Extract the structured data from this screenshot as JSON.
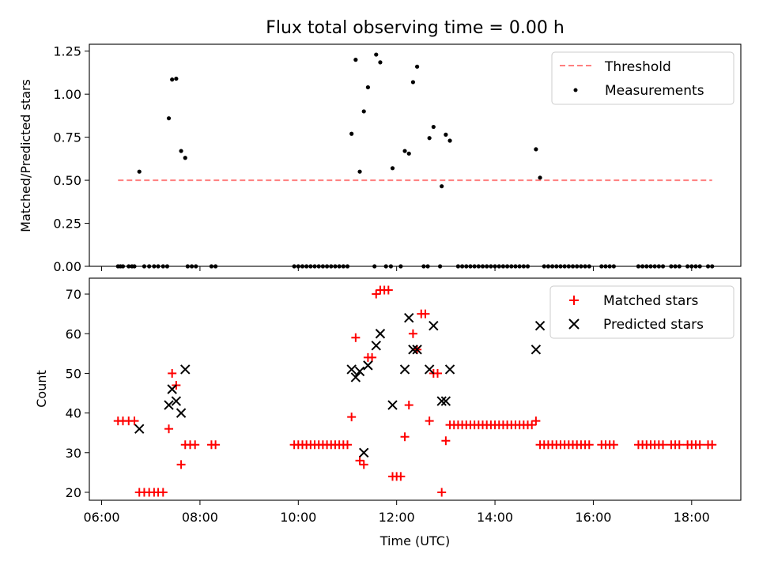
{
  "figure": {
    "title": "Flux total observing time = 0.00 h",
    "xlabel": "Time (UTC)"
  },
  "chart_data": [
    {
      "type": "scatter",
      "panel": "top",
      "ylabel": "Matched/Predicted stars",
      "xlim": [
        "05:45",
        "19:00"
      ],
      "ylim": [
        0,
        1.29
      ],
      "yticks": [
        "0.00",
        "0.25",
        "0.50",
        "0.75",
        "1.00",
        "1.25"
      ],
      "yticks_values": [
        0,
        0.25,
        0.5,
        0.75,
        1.0,
        1.25
      ],
      "legend_position": "top-right",
      "threshold": {
        "name": "Threshold",
        "value": 0.5,
        "x_range": [
          "06:20",
          "18:25"
        ],
        "color": "#ff7f7f",
        "style": "dashed"
      },
      "series": [
        {
          "name": "Measurements",
          "color": "#000000",
          "marker": "dot",
          "points": [
            [
              "06:20",
              0
            ],
            [
              "06:23",
              0
            ],
            [
              "06:26",
              0
            ],
            [
              "06:33",
              0
            ],
            [
              "06:37",
              0
            ],
            [
              "06:40",
              0
            ],
            [
              "06:46",
              0.55
            ],
            [
              "06:52",
              0
            ],
            [
              "06:58",
              0
            ],
            [
              "07:04",
              0
            ],
            [
              "07:09",
              0
            ],
            [
              "07:15",
              0
            ],
            [
              "07:20",
              0
            ],
            [
              "07:22",
              0.86
            ],
            [
              "07:26",
              1.085
            ],
            [
              "07:31",
              1.09
            ],
            [
              "07:37",
              0.67
            ],
            [
              "07:42",
              0.63
            ],
            [
              "07:45",
              0
            ],
            [
              "07:50",
              0
            ],
            [
              "07:55",
              0
            ],
            [
              "08:14",
              0
            ],
            [
              "08:19",
              0
            ],
            [
              "09:55",
              0
            ],
            [
              "10:00",
              0
            ],
            [
              "10:05",
              0
            ],
            [
              "10:10",
              0
            ],
            [
              "10:15",
              0
            ],
            [
              "10:20",
              0
            ],
            [
              "10:25",
              0
            ],
            [
              "10:30",
              0
            ],
            [
              "10:35",
              0
            ],
            [
              "10:40",
              0
            ],
            [
              "10:45",
              0
            ],
            [
              "10:50",
              0
            ],
            [
              "10:55",
              0
            ],
            [
              "11:00",
              0
            ],
            [
              "11:05",
              0.77
            ],
            [
              "11:10",
              1.2
            ],
            [
              "11:15",
              0.55
            ],
            [
              "11:20",
              0.9
            ],
            [
              "11:25",
              1.04
            ],
            [
              "11:33",
              0
            ],
            [
              "11:35",
              1.23
            ],
            [
              "11:40",
              1.185
            ],
            [
              "11:47",
              0
            ],
            [
              "11:53",
              0
            ],
            [
              "11:55",
              0.57
            ],
            [
              "12:05",
              0
            ],
            [
              "12:10",
              0.67
            ],
            [
              "12:15",
              0.655
            ],
            [
              "12:20",
              1.07
            ],
            [
              "12:25",
              1.16
            ],
            [
              "12:33",
              0
            ],
            [
              "12:38",
              0
            ],
            [
              "12:40",
              0.745
            ],
            [
              "12:45",
              0.81
            ],
            [
              "12:53",
              0
            ],
            [
              "12:55",
              0.465
            ],
            [
              "13:00",
              0.765
            ],
            [
              "13:05",
              0.73
            ],
            [
              "13:15",
              0
            ],
            [
              "13:20",
              0
            ],
            [
              "13:25",
              0
            ],
            [
              "13:30",
              0
            ],
            [
              "13:35",
              0
            ],
            [
              "13:40",
              0
            ],
            [
              "13:45",
              0
            ],
            [
              "13:50",
              0
            ],
            [
              "13:55",
              0
            ],
            [
              "14:00",
              0
            ],
            [
              "14:05",
              0
            ],
            [
              "14:10",
              0
            ],
            [
              "14:15",
              0
            ],
            [
              "14:20",
              0
            ],
            [
              "14:25",
              0
            ],
            [
              "14:30",
              0
            ],
            [
              "14:35",
              0
            ],
            [
              "14:40",
              0
            ],
            [
              "14:50",
              0.68
            ],
            [
              "14:55",
              0.515
            ],
            [
              "15:00",
              0
            ],
            [
              "15:05",
              0
            ],
            [
              "15:10",
              0
            ],
            [
              "15:15",
              0
            ],
            [
              "15:20",
              0
            ],
            [
              "15:25",
              0
            ],
            [
              "15:30",
              0
            ],
            [
              "15:35",
              0
            ],
            [
              "15:40",
              0
            ],
            [
              "15:45",
              0
            ],
            [
              "15:50",
              0
            ],
            [
              "15:55",
              0
            ],
            [
              "16:10",
              0
            ],
            [
              "16:15",
              0
            ],
            [
              "16:20",
              0
            ],
            [
              "16:25",
              0
            ],
            [
              "16:55",
              0
            ],
            [
              "17:00",
              0
            ],
            [
              "17:05",
              0
            ],
            [
              "17:10",
              0
            ],
            [
              "17:15",
              0
            ],
            [
              "17:20",
              0
            ],
            [
              "17:25",
              0
            ],
            [
              "17:35",
              0
            ],
            [
              "17:40",
              0
            ],
            [
              "17:45",
              0
            ],
            [
              "17:55",
              0
            ],
            [
              "18:00",
              0
            ],
            [
              "18:05",
              0
            ],
            [
              "18:10",
              0
            ],
            [
              "18:20",
              0
            ],
            [
              "18:25",
              0
            ]
          ]
        }
      ]
    },
    {
      "type": "scatter",
      "panel": "bottom",
      "ylabel": "Count",
      "xlabel": "Time (UTC)",
      "xlim": [
        "05:45",
        "19:00"
      ],
      "ylim": [
        18,
        74
      ],
      "yticks": [
        "20",
        "30",
        "40",
        "50",
        "60",
        "70"
      ],
      "yticks_values": [
        20,
        30,
        40,
        50,
        60,
        70
      ],
      "xticks": [
        "06:00",
        "08:00",
        "10:00",
        "12:00",
        "14:00",
        "16:00",
        "18:00"
      ],
      "legend_position": "top-right",
      "series": [
        {
          "name": "Matched stars",
          "color": "#ff0000",
          "marker": "plus",
          "points": [
            [
              "06:20",
              38
            ],
            [
              "06:26",
              38
            ],
            [
              "06:33",
              38
            ],
            [
              "06:40",
              38
            ],
            [
              "06:46",
              20
            ],
            [
              "06:52",
              20
            ],
            [
              "06:58",
              20
            ],
            [
              "07:04",
              20
            ],
            [
              "07:09",
              20
            ],
            [
              "07:15",
              20
            ],
            [
              "07:22",
              36
            ],
            [
              "07:26",
              50
            ],
            [
              "07:31",
              47
            ],
            [
              "07:37",
              27
            ],
            [
              "07:42",
              32
            ],
            [
              "07:48",
              32
            ],
            [
              "07:54",
              32
            ],
            [
              "08:14",
              32
            ],
            [
              "08:19",
              32
            ],
            [
              "09:55",
              32
            ],
            [
              "10:00",
              32
            ],
            [
              "10:05",
              32
            ],
            [
              "10:10",
              32
            ],
            [
              "10:15",
              32
            ],
            [
              "10:20",
              32
            ],
            [
              "10:25",
              32
            ],
            [
              "10:30",
              32
            ],
            [
              "10:35",
              32
            ],
            [
              "10:40",
              32
            ],
            [
              "10:45",
              32
            ],
            [
              "10:50",
              32
            ],
            [
              "10:55",
              32
            ],
            [
              "11:00",
              32
            ],
            [
              "11:05",
              39
            ],
            [
              "11:10",
              59
            ],
            [
              "11:15",
              28
            ],
            [
              "11:20",
              27
            ],
            [
              "11:25",
              54
            ],
            [
              "11:30",
              54
            ],
            [
              "11:35",
              70
            ],
            [
              "11:40",
              71
            ],
            [
              "11:45",
              71
            ],
            [
              "11:50",
              71
            ],
            [
              "11:55",
              24
            ],
            [
              "12:00",
              24
            ],
            [
              "12:05",
              24
            ],
            [
              "12:10",
              34
            ],
            [
              "12:15",
              42
            ],
            [
              "12:20",
              60
            ],
            [
              "12:25",
              56
            ],
            [
              "12:30",
              65
            ],
            [
              "12:35",
              65
            ],
            [
              "12:40",
              38
            ],
            [
              "12:45",
              50
            ],
            [
              "12:50",
              50
            ],
            [
              "12:55",
              20
            ],
            [
              "13:00",
              33
            ],
            [
              "13:05",
              37
            ],
            [
              "13:10",
              37
            ],
            [
              "13:15",
              37
            ],
            [
              "13:20",
              37
            ],
            [
              "13:25",
              37
            ],
            [
              "13:30",
              37
            ],
            [
              "13:35",
              37
            ],
            [
              "13:40",
              37
            ],
            [
              "13:45",
              37
            ],
            [
              "13:50",
              37
            ],
            [
              "13:55",
              37
            ],
            [
              "14:00",
              37
            ],
            [
              "14:05",
              37
            ],
            [
              "14:10",
              37
            ],
            [
              "14:15",
              37
            ],
            [
              "14:20",
              37
            ],
            [
              "14:25",
              37
            ],
            [
              "14:30",
              37
            ],
            [
              "14:35",
              37
            ],
            [
              "14:40",
              37
            ],
            [
              "14:45",
              37
            ],
            [
              "14:50",
              38
            ],
            [
              "14:55",
              32
            ],
            [
              "15:00",
              32
            ],
            [
              "15:05",
              32
            ],
            [
              "15:10",
              32
            ],
            [
              "15:15",
              32
            ],
            [
              "15:20",
              32
            ],
            [
              "15:25",
              32
            ],
            [
              "15:30",
              32
            ],
            [
              "15:35",
              32
            ],
            [
              "15:40",
              32
            ],
            [
              "15:45",
              32
            ],
            [
              "15:50",
              32
            ],
            [
              "15:55",
              32
            ],
            [
              "16:10",
              32
            ],
            [
              "16:15",
              32
            ],
            [
              "16:20",
              32
            ],
            [
              "16:25",
              32
            ],
            [
              "16:55",
              32
            ],
            [
              "17:00",
              32
            ],
            [
              "17:05",
              32
            ],
            [
              "17:10",
              32
            ],
            [
              "17:15",
              32
            ],
            [
              "17:20",
              32
            ],
            [
              "17:25",
              32
            ],
            [
              "17:35",
              32
            ],
            [
              "17:40",
              32
            ],
            [
              "17:45",
              32
            ],
            [
              "17:55",
              32
            ],
            [
              "18:00",
              32
            ],
            [
              "18:05",
              32
            ],
            [
              "18:10",
              32
            ],
            [
              "18:20",
              32
            ],
            [
              "18:25",
              32
            ]
          ]
        },
        {
          "name": "Predicted stars",
          "color": "#000000",
          "marker": "x",
          "points": [
            [
              "06:46",
              36
            ],
            [
              "07:22",
              42
            ],
            [
              "07:26",
              46
            ],
            [
              "07:31",
              43
            ],
            [
              "07:37",
              40
            ],
            [
              "07:42",
              51
            ],
            [
              "11:05",
              51
            ],
            [
              "11:10",
              49
            ],
            [
              "11:15",
              50.5
            ],
            [
              "11:20",
              30
            ],
            [
              "11:25",
              52
            ],
            [
              "11:35",
              57
            ],
            [
              "11:40",
              60
            ],
            [
              "11:55",
              42
            ],
            [
              "12:10",
              51
            ],
            [
              "12:15",
              64
            ],
            [
              "12:20",
              56
            ],
            [
              "12:25",
              56
            ],
            [
              "12:40",
              51
            ],
            [
              "12:45",
              62
            ],
            [
              "12:55",
              43
            ],
            [
              "13:00",
              43
            ],
            [
              "13:05",
              51
            ],
            [
              "14:50",
              56
            ],
            [
              "14:55",
              62
            ]
          ]
        }
      ]
    }
  ]
}
